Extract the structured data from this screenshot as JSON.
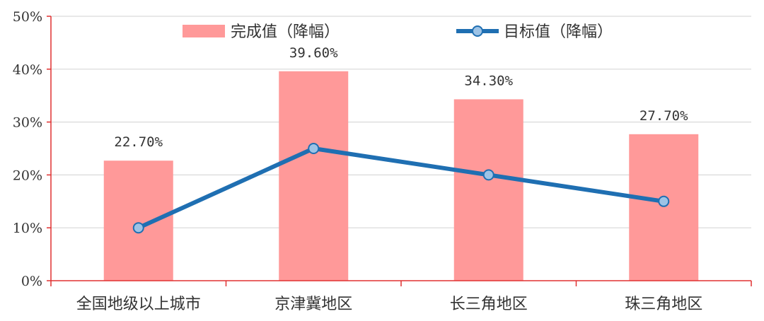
{
  "chart_data": {
    "type": "bar",
    "categories": [
      "全国地级以上城市",
      "京津冀地区",
      "长三角地区",
      "珠三角地区"
    ],
    "series": [
      {
        "name": "完成值（降幅）",
        "kind": "bar",
        "values": [
          22.7,
          39.6,
          34.3,
          27.7
        ],
        "labels": [
          "22.70%",
          "39.60%",
          "34.30%",
          "27.70%"
        ],
        "color": "#ff9999"
      },
      {
        "name": "目标值（降幅）",
        "kind": "line",
        "values": [
          10,
          25,
          20,
          15
        ],
        "color": "#1f6fb2",
        "marker_fill": "#9dc3e6"
      }
    ],
    "yticks": [
      "0%",
      "10%",
      "20%",
      "30%",
      "40%",
      "50%"
    ],
    "ylim": [
      0,
      50
    ],
    "grid": true,
    "axis_color": "#e03030",
    "legend_position": "top"
  }
}
